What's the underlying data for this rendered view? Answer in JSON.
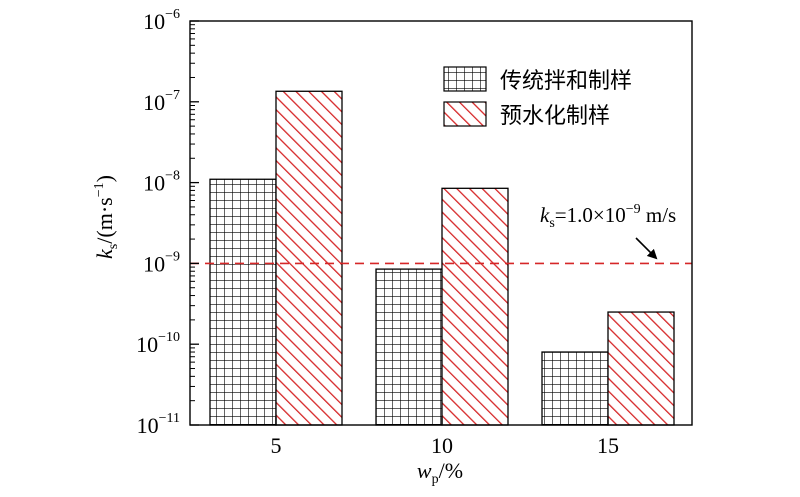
{
  "chart_data": {
    "type": "bar",
    "xlabel": {
      "main": "w",
      "sub": "p",
      "suffix": "/%"
    },
    "ylabel": {
      "main": "k",
      "sub": "s",
      "unit": "/(m·s",
      "exp": "−1",
      "close": ")"
    },
    "yscale": "log",
    "ylim": [
      1e-11,
      1e-06
    ],
    "yticks": [
      {
        "value": 1e-06,
        "base": "10",
        "exp": "−6"
      },
      {
        "value": 1e-07,
        "base": "10",
        "exp": "−7"
      },
      {
        "value": 1e-08,
        "base": "10",
        "exp": "−8"
      },
      {
        "value": 1e-09,
        "base": "10",
        "exp": "−9"
      },
      {
        "value": 1e-10,
        "base": "10",
        "exp": "−10"
      },
      {
        "value": 1e-11,
        "base": "10",
        "exp": "−11"
      }
    ],
    "categories": [
      "5",
      "10",
      "15"
    ],
    "series": [
      {
        "name": "传统拌和制样",
        "pattern": "grid",
        "color": "#000000",
        "values": [
          1.1e-08,
          8.5e-10,
          8e-11
        ]
      },
      {
        "name": "预水化制样",
        "pattern": "hatch",
        "color": "#d62728",
        "values": [
          1.35e-07,
          8.5e-09,
          2.5e-10
        ]
      }
    ],
    "legend_position": "top-right",
    "reference_line": {
      "value": 1e-09,
      "color": "#d62728",
      "label": {
        "k": "k",
        "sub": "s",
        "pre": "=1.0×10",
        "exp": "−9",
        "unit": " m/s"
      }
    }
  }
}
